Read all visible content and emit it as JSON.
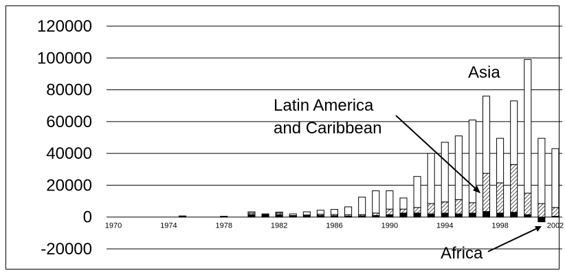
{
  "chart_data": {
    "type": "bar",
    "stacked": true,
    "x": [
      1970,
      1971,
      1972,
      1973,
      1974,
      1975,
      1976,
      1977,
      1978,
      1979,
      1980,
      1981,
      1982,
      1983,
      1984,
      1985,
      1986,
      1987,
      1988,
      1989,
      1990,
      1991,
      1992,
      1993,
      1994,
      1995,
      1996,
      1997,
      1998,
      1999,
      2000,
      2001,
      2002
    ],
    "x_tick_labels": [
      "1970",
      "1974",
      "1978",
      "1982",
      "1986",
      "1990",
      "1994",
      "1998",
      "2002"
    ],
    "y_tick_labels": [
      "-20000",
      "0",
      "20000",
      "40000",
      "60000",
      "80000",
      "100000",
      "120000"
    ],
    "ylim": [
      -20000,
      120000
    ],
    "grid": true,
    "series": [
      {
        "name": "Africa",
        "pattern": "solid",
        "color": "#000000",
        "values": [
          0,
          0,
          0,
          0,
          0,
          500,
          0,
          0,
          300,
          0,
          1500,
          1500,
          1500,
          500,
          800,
          1000,
          800,
          600,
          700,
          1000,
          1500,
          2500,
          2500,
          2000,
          2500,
          2000,
          2500,
          3500,
          2500,
          3000,
          1500,
          -3000,
          500
        ]
      },
      {
        "name": "Latin America and Caribbean",
        "pattern": "hatch",
        "color": "#000000",
        "values": [
          0,
          0,
          0,
          0,
          0,
          200,
          0,
          0,
          200,
          0,
          1000,
          500,
          1000,
          500,
          500,
          800,
          800,
          800,
          800,
          1500,
          3500,
          2500,
          3500,
          6500,
          7000,
          9000,
          6500,
          24000,
          19000,
          30000,
          13500,
          8500,
          5500
        ]
      },
      {
        "name": "Asia",
        "pattern": "white",
        "color": "#ffffff",
        "values": [
          0,
          0,
          0,
          0,
          0,
          0,
          0,
          0,
          0,
          0,
          800,
          0,
          600,
          1000,
          2000,
          2500,
          3200,
          5000,
          11000,
          14000,
          11500,
          7000,
          19500,
          31500,
          37500,
          40000,
          52000,
          48500,
          28000,
          40000,
          84000,
          41000,
          37000
        ]
      }
    ],
    "annotations": [
      {
        "text": "Asia"
      },
      {
        "text_lines": [
          "Latin America",
          "and Caribbean"
        ]
      },
      {
        "text": "Africa"
      }
    ]
  }
}
